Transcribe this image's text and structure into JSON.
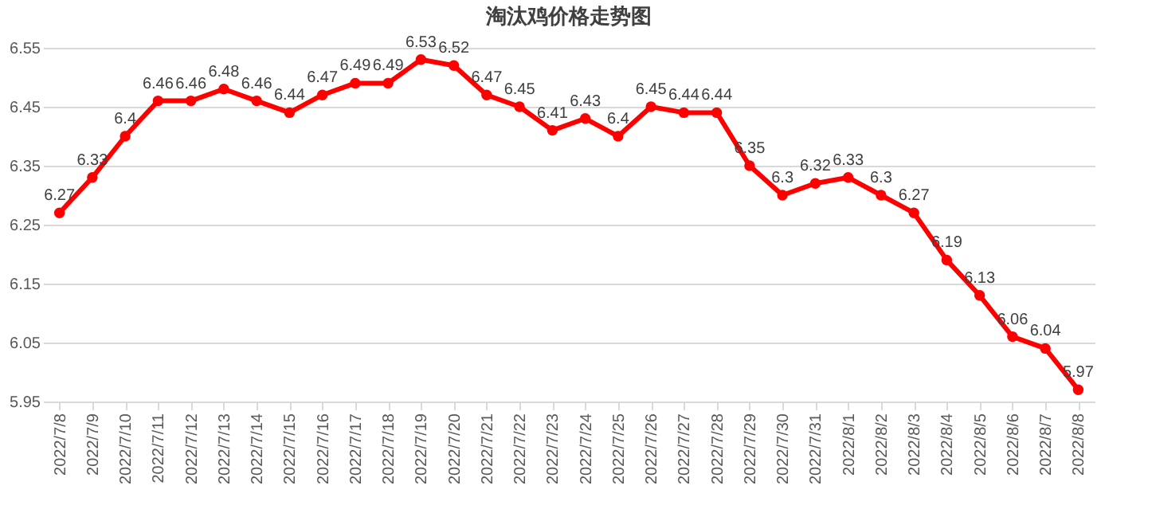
{
  "chart_data": {
    "type": "line",
    "title": "淘汰鸡价格走势图",
    "categories": [
      "2022/7/8",
      "2022/7/9",
      "2022/7/10",
      "2022/7/11",
      "2022/7/12",
      "2022/7/13",
      "2022/7/14",
      "2022/7/15",
      "2022/7/16",
      "2022/7/17",
      "2022/7/18",
      "2022/7/19",
      "2022/7/20",
      "2022/7/21",
      "2022/7/22",
      "2022/7/23",
      "2022/7/24",
      "2022/7/25",
      "2022/7/26",
      "2022/7/27",
      "2022/7/28",
      "2022/7/29",
      "2022/7/30",
      "2022/7/31",
      "2022/8/1",
      "2022/8/2",
      "2022/8/3",
      "2022/8/4",
      "2022/8/5",
      "2022/8/6",
      "2022/8/7",
      "2022/8/8"
    ],
    "series": [
      {
        "color": "#ff0000",
        "values": [
          6.27,
          6.33,
          6.4,
          6.46,
          6.46,
          6.48,
          6.46,
          6.44,
          6.47,
          6.49,
          6.49,
          6.53,
          6.52,
          6.47,
          6.45,
          6.41,
          6.43,
          6.4,
          6.45,
          6.44,
          6.44,
          6.35,
          6.3,
          6.32,
          6.33,
          6.3,
          6.27,
          6.19,
          6.13,
          6.06,
          6.04,
          5.97
        ]
      }
    ],
    "ylim": [
      5.95,
      6.55
    ],
    "yticks": [
      5.95,
      6.05,
      6.15,
      6.25,
      6.35,
      6.45,
      6.55
    ],
    "grid": "y",
    "marker": "circle",
    "line_style": "solid",
    "data_labels": true,
    "legend": false
  }
}
